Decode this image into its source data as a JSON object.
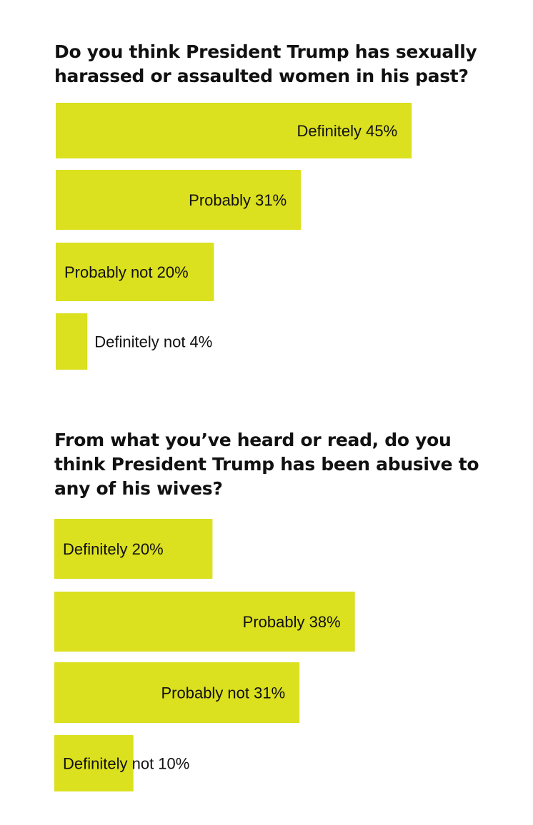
{
  "chart_data": [
    {
      "type": "bar",
      "orientation": "horizontal",
      "title": "Do you think President Trump has sexually harassed or assaulted women in his past?",
      "categories": [
        "Definitely",
        "Probably",
        "Probably not",
        "Definitely not"
      ],
      "values": [
        45,
        31,
        20,
        4
      ],
      "value_labels": [
        "45%",
        "31%",
        "20%",
        "4%"
      ],
      "color": "#dbe01f",
      "grid": false
    },
    {
      "type": "bar",
      "orientation": "horizontal",
      "title": "From what you’ve heard or read, do you think President Trump has been abusive to any of his wives?",
      "categories": [
        "Definitely",
        "Probably",
        "Probably not",
        "Definitely not"
      ],
      "values": [
        20,
        38,
        31,
        10
      ],
      "value_labels": [
        "20%",
        "38%",
        "31%",
        "10%"
      ],
      "color": "#dbe01f",
      "grid": false
    }
  ]
}
